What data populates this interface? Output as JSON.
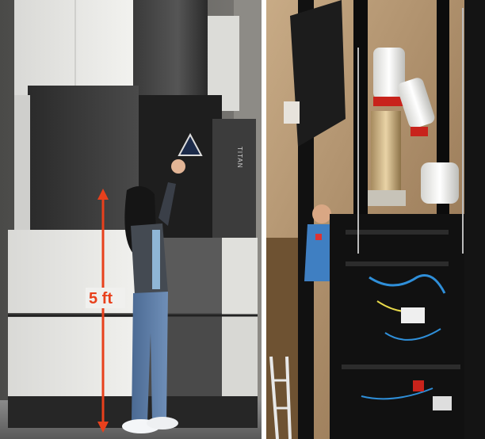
{
  "left_photo": {
    "height_label": "5 ft",
    "brand_label": "TITAN",
    "arrow_color": "#e8401c"
  },
  "right_photo": {}
}
